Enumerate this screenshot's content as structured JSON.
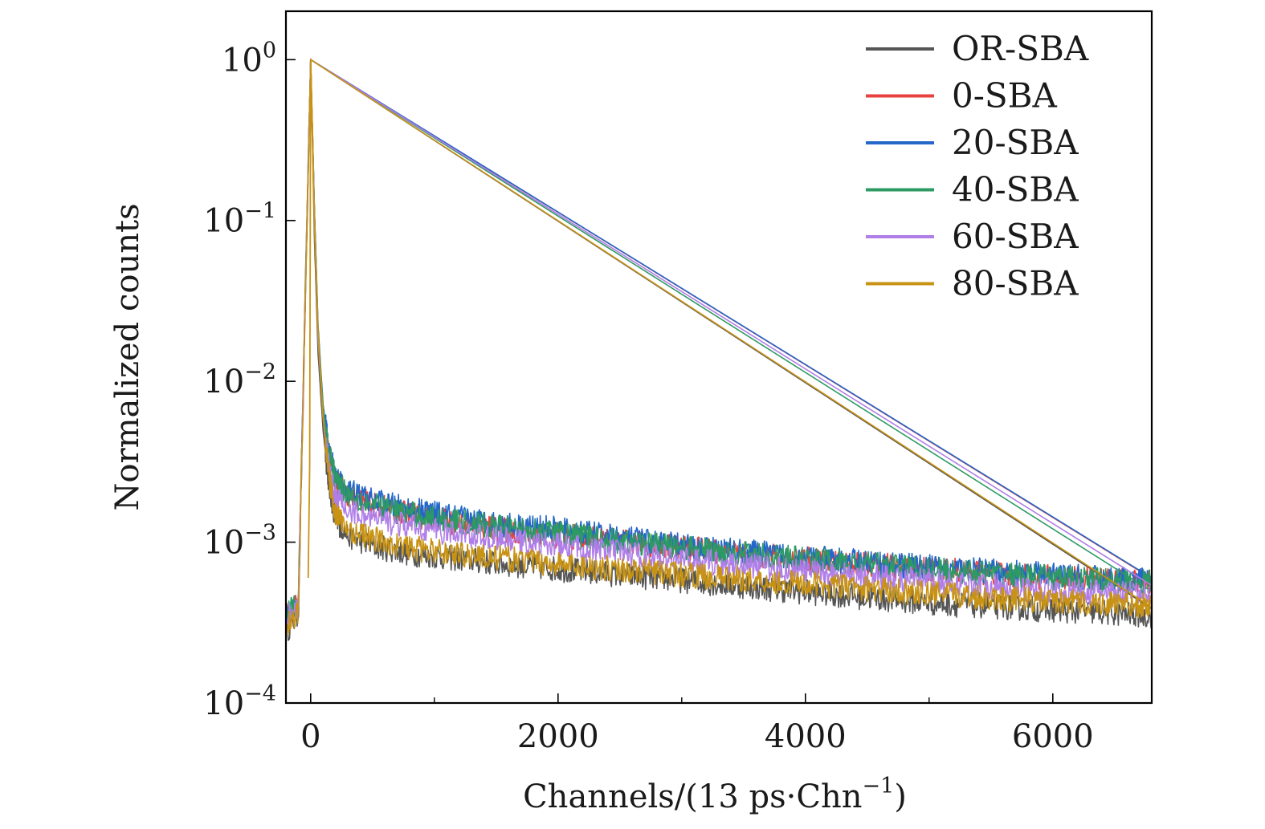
{
  "chart_data": {
    "type": "line",
    "title": "",
    "xlabel": "Channels/(13 ps·Chn",
    "xlabel_sup": "−1",
    "xlabel_tail": ")",
    "ylabel": "Normalized counts",
    "xlim": [
      -200,
      6800
    ],
    "ylim": [
      0.0001,
      2
    ],
    "yscale": "log",
    "x_ticks": [
      0,
      2000,
      4000,
      6000
    ],
    "x_tick_labels": [
      "0",
      "2000",
      "4000",
      "6000"
    ],
    "x_minor_ticks": [
      1000,
      3000,
      5000
    ],
    "y_ticks": [
      {
        "value": 1,
        "base": "10",
        "exp": "0"
      },
      {
        "value": 0.1,
        "base": "10",
        "exp": "−1"
      },
      {
        "value": 0.01,
        "base": "10",
        "exp": "−2"
      },
      {
        "value": 0.001,
        "base": "10",
        "exp": "−3"
      },
      {
        "value": 0.0001,
        "base": "10",
        "exp": "−4"
      }
    ],
    "legend_position": "top-right",
    "x": [
      -200,
      -100,
      0,
      30,
      60,
      100,
      150,
      200,
      300,
      500,
      800,
      1000,
      1500,
      2000,
      3000,
      4000,
      5000,
      6000,
      6800
    ],
    "series": [
      {
        "name": "OR-SBA",
        "color": "#555555",
        "values": [
          0.00028,
          0.00035,
          1.0,
          0.08,
          0.015,
          0.005,
          0.0022,
          0.0014,
          0.0011,
          0.00095,
          0.00085,
          0.00082,
          0.00074,
          0.00068,
          0.00058,
          0.00049,
          0.00042,
          0.00038,
          0.00035
        ]
      },
      {
        "name": "0-SBA",
        "color": "#e8423f",
        "values": [
          0.00035,
          0.00042,
          1.0,
          0.12,
          0.02,
          0.0065,
          0.0033,
          0.0024,
          0.002,
          0.0017,
          0.0015,
          0.0014,
          0.0012,
          0.0011,
          0.00092,
          0.00078,
          0.00068,
          0.0006,
          0.00056
        ]
      },
      {
        "name": "20-SBA",
        "color": "#2367c9",
        "values": [
          0.00036,
          0.00043,
          1.0,
          0.12,
          0.022,
          0.0072,
          0.0037,
          0.0026,
          0.0021,
          0.0018,
          0.0016,
          0.0015,
          0.0013,
          0.0012,
          0.00095,
          0.0008,
          0.0007,
          0.00062,
          0.00057
        ]
      },
      {
        "name": "40-SBA",
        "color": "#2e9a63",
        "values": [
          0.00035,
          0.00042,
          1.0,
          0.12,
          0.021,
          0.007,
          0.0035,
          0.0025,
          0.002,
          0.0017,
          0.0015,
          0.0014,
          0.00125,
          0.00113,
          0.00092,
          0.00078,
          0.00068,
          0.0006,
          0.00056
        ]
      },
      {
        "name": "60-SBA",
        "color": "#b07ee8",
        "values": [
          0.00033,
          0.0004,
          1.0,
          0.11,
          0.018,
          0.006,
          0.0028,
          0.0019,
          0.0016,
          0.0014,
          0.00125,
          0.00118,
          0.00105,
          0.00095,
          0.00078,
          0.00066,
          0.00057,
          0.0005,
          0.00047
        ]
      },
      {
        "name": "80-SBA",
        "color": "#c89314",
        "values": [
          0.0003,
          0.00037,
          1.0,
          0.1,
          0.02,
          0.006,
          0.0025,
          0.0015,
          0.0012,
          0.00105,
          0.00092,
          0.00088,
          0.0008,
          0.00073,
          0.00063,
          0.00055,
          0.00048,
          0.00043,
          0.0004
        ]
      }
    ]
  }
}
